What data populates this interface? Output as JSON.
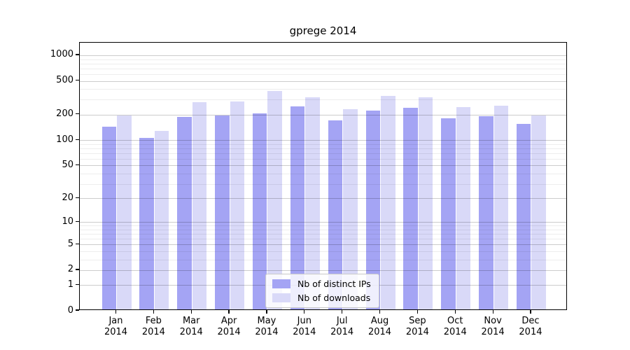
{
  "title": "gprege 2014",
  "chart_data": {
    "type": "bar",
    "title": "gprege 2014",
    "categories": [
      "Jan 2014",
      "Feb 2014",
      "Mar 2014",
      "Apr 2014",
      "May 2014",
      "Jun 2014",
      "Jul 2014",
      "Aug 2014",
      "Sep 2014",
      "Oct 2014",
      "Nov 2014",
      "Dec 2014"
    ],
    "series": [
      {
        "name": "Nb of distinct IPs",
        "color": "#a4a4f4",
        "values": [
          138,
          102,
          180,
          190,
          200,
          240,
          164,
          216,
          230,
          176,
          186,
          151
        ]
      },
      {
        "name": "Nb of downloads",
        "color": "#d9d9f8",
        "values": [
          190,
          123,
          270,
          278,
          368,
          310,
          224,
          322,
          310,
          238,
          248,
          190
        ]
      }
    ],
    "xlabel": "",
    "ylabel": "",
    "yscale": "log10(value+1)",
    "ylim": [
      0,
      1400
    ],
    "y_ticks": [
      0,
      1,
      2,
      5,
      10,
      20,
      50,
      100,
      200,
      500,
      1000
    ],
    "grid": "major and minor horizontal gridlines drawn above bars",
    "legend_position": "lower center inside plot"
  },
  "legend": {
    "items": [
      {
        "label": "Nb of distinct IPs",
        "swatch_color": "#a4a4f4"
      },
      {
        "label": "Nb of downloads",
        "swatch_color": "#d9d9f8"
      }
    ]
  },
  "colors": {
    "background": "#ffffff",
    "bar_distinct_ips": "#a4a4f4",
    "bar_downloads": "#d9d9f8",
    "axis": "#000000",
    "grid_major": "rgba(0,0,0,0.20)",
    "grid_minor": "rgba(0,0,0,0.07)",
    "legend_border": "#c9c9c9"
  }
}
